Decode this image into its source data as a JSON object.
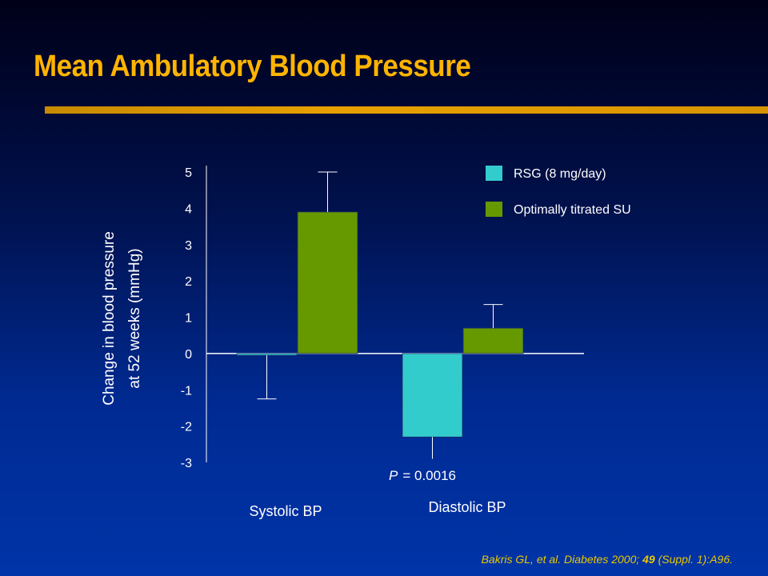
{
  "slide": {
    "title": "Mean Ambulatory Blood Pressure",
    "citation": {
      "prefix": "Bakris GL,   et al. Diabetes 2000; ",
      "volume": "49",
      "suffix": " (Suppl. 1):A96."
    }
  },
  "chart_data": {
    "type": "bar",
    "ylabel_lines": [
      "Change in blood pressure",
      "at 52 weeks (mmHg)"
    ],
    "ylim": [
      -3,
      5
    ],
    "yticks": [
      5,
      4,
      3,
      2,
      1,
      0,
      -1,
      -2,
      -3
    ],
    "categories": [
      "Systolic BP",
      "Diastolic BP"
    ],
    "series": [
      {
        "name": "RSG (8 mg/day)",
        "color": "#33cccc",
        "values": [
          -0.05,
          -2.3
        ],
        "errors": [
          1.2,
          0.6
        ]
      },
      {
        "name": "Optimally titrated SU",
        "color": "#669900",
        "values": [
          3.9,
          0.7
        ],
        "errors": [
          1.1,
          0.65
        ]
      }
    ],
    "annotation": {
      "label": "P",
      "text": " = 0.0016",
      "category": "Diastolic BP"
    },
    "legend": "top-right"
  },
  "colors": {
    "title": "#ffb400",
    "axis_text": "#ffffff",
    "citation": "#e8c800"
  }
}
